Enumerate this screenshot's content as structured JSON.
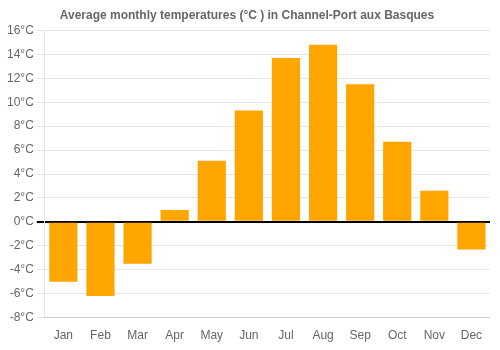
{
  "chart_data": {
    "type": "bar",
    "title": "Average monthly temperatures (°C ) in Channel-Port aux Basques",
    "categories": [
      "Jan",
      "Feb",
      "Mar",
      "Apr",
      "May",
      "Jun",
      "Jul",
      "Aug",
      "Sep",
      "Oct",
      "Nov",
      "Dec"
    ],
    "values": [
      -5.0,
      -6.2,
      -3.5,
      1.0,
      5.1,
      9.3,
      13.7,
      14.8,
      11.5,
      6.7,
      2.6,
      -2.3
    ],
    "color": "#FFA500",
    "ylim": [
      -8,
      16
    ],
    "yticks": [
      {
        "value": -8,
        "label": "-8°C"
      },
      {
        "value": -6,
        "label": "-6°C"
      },
      {
        "value": -4,
        "label": "-4°C"
      },
      {
        "value": -2,
        "label": "-2°C"
      },
      {
        "value": 0,
        "label": "0°C"
      },
      {
        "value": 2,
        "label": "2°C"
      },
      {
        "value": 4,
        "label": "4°C"
      },
      {
        "value": 6,
        "label": "6°C"
      },
      {
        "value": 8,
        "label": "8°C"
      },
      {
        "value": 10,
        "label": "10°C"
      },
      {
        "value": 12,
        "label": "12°C"
      },
      {
        "value": 14,
        "label": "14°C"
      },
      {
        "value": 16,
        "label": "16°C"
      }
    ],
    "grid": true
  }
}
